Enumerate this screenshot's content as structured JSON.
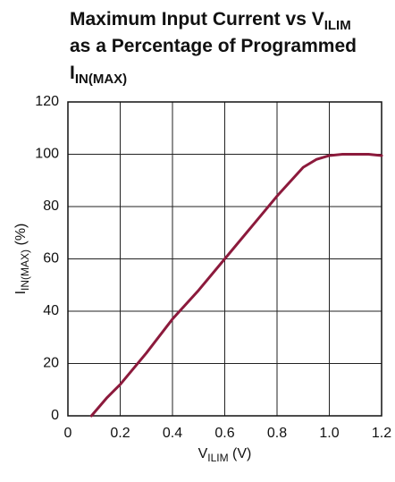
{
  "chart_data": {
    "type": "line",
    "title_lines": [
      {
        "text": "Maximum Input Current vs V",
        "sub": "ILIM"
      },
      {
        "text": "as a Percentage of Programmed"
      },
      {
        "text": "I",
        "sub": "IN(MAX)"
      }
    ],
    "x_label": {
      "text": "V",
      "sub": "ILIM",
      "after": " (V)"
    },
    "y_label": {
      "text": "I",
      "sub": "IN(MAX)",
      "after": " (%)"
    },
    "x": [
      0.09,
      0.15,
      0.2,
      0.3,
      0.4,
      0.5,
      0.6,
      0.7,
      0.8,
      0.9,
      0.95,
      1.0,
      1.05,
      1.1,
      1.15,
      1.2
    ],
    "series": [
      {
        "color": "#8c1a3c",
        "values": [
          0,
          7,
          12,
          24,
          37,
          48,
          60,
          72,
          84,
          95,
          98,
          99.5,
          100,
          100,
          100,
          99.5
        ]
      }
    ],
    "xlim": [
      0,
      1.2
    ],
    "xticks": [
      0,
      0.2,
      0.4,
      0.6,
      0.8,
      {
        "value": 1,
        "label": "1.0"
      },
      1.2
    ],
    "ylim": [
      0,
      120
    ],
    "yticks": [
      0,
      20,
      40,
      60,
      80,
      100,
      120
    ],
    "grid": true
  }
}
